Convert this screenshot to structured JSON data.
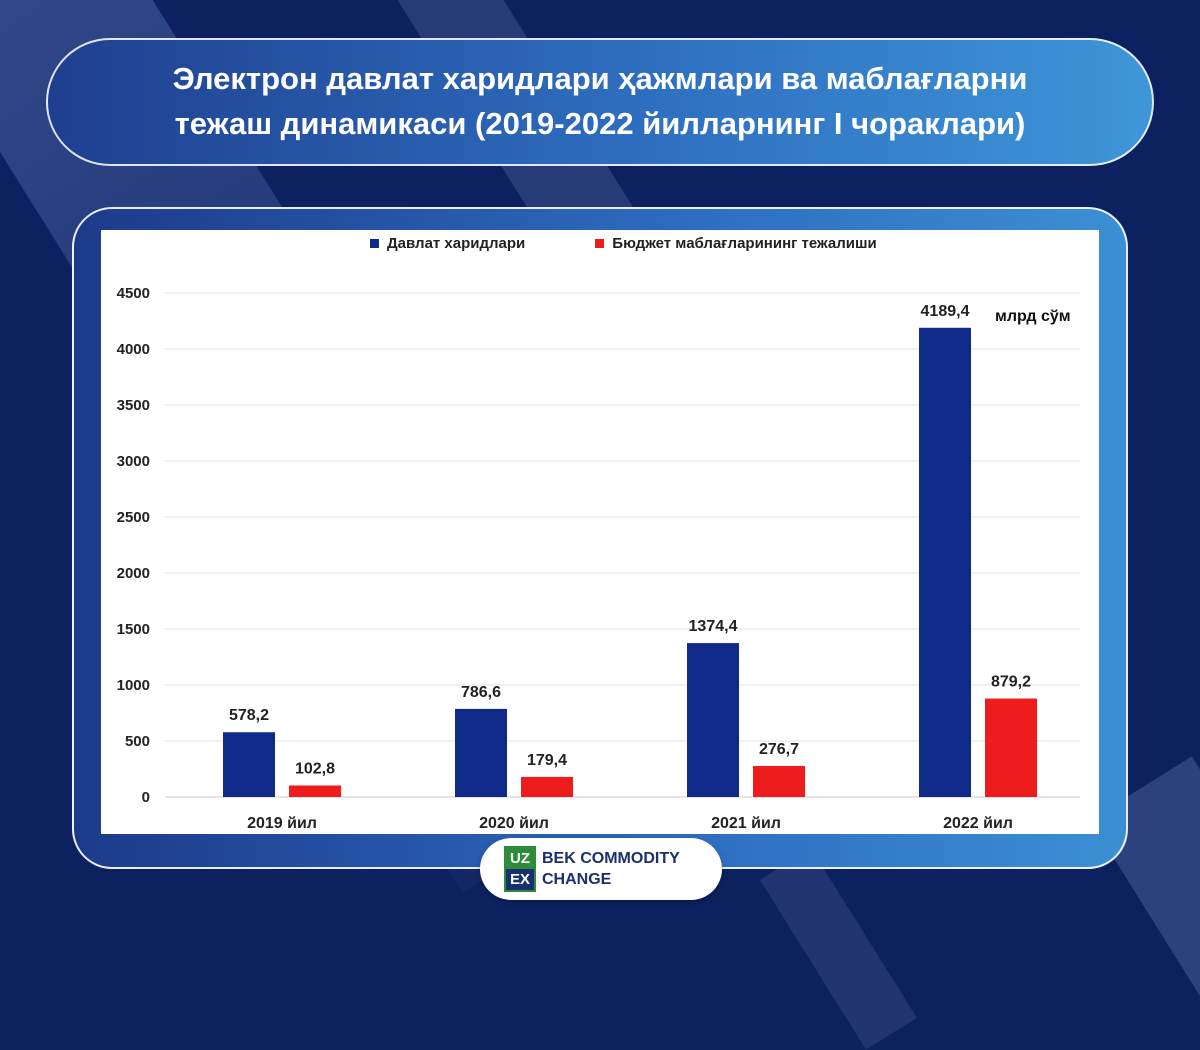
{
  "title": {
    "line1": "Электрон давлат харидлари ҳажмлари ва маблағларни",
    "line2": "тежаш динамикаси (2019-2022 йилларнинг I чораклари)"
  },
  "unit": "млрд сўм",
  "logo": {
    "mark_top": "UZ",
    "mark_bottom": "EX",
    "word1": "BEK COMMODITY",
    "word2": "CHANGE"
  },
  "colors": {
    "background": "#0d2160",
    "series_procurement": "#102a8a",
    "series_savings": "#ee1c1c"
  },
  "chart_data": {
    "type": "bar",
    "categories": [
      "2019 йил",
      "2020 йил",
      "2021 йил",
      "2022 йил"
    ],
    "series": [
      {
        "name": "Давлат харидлари",
        "color": "#102a8a",
        "values": [
          578.2,
          786.6,
          1374.4,
          4189.4
        ],
        "labels": [
          "578,2",
          "786,6",
          "1374,4",
          "4189,4"
        ]
      },
      {
        "name": "Бюджет маблағларининг тежалиши",
        "color": "#ee1c1c",
        "values": [
          102.8,
          179.4,
          276.7,
          879.2
        ],
        "labels": [
          "102,8",
          "179,4",
          "276,7",
          "879,2"
        ]
      }
    ],
    "ylim": [
      0,
      4500
    ],
    "yticks": [
      0,
      500,
      1000,
      1500,
      2000,
      2500,
      3000,
      3500,
      4000,
      4500
    ],
    "grid": true,
    "legend_position": "top-center"
  }
}
